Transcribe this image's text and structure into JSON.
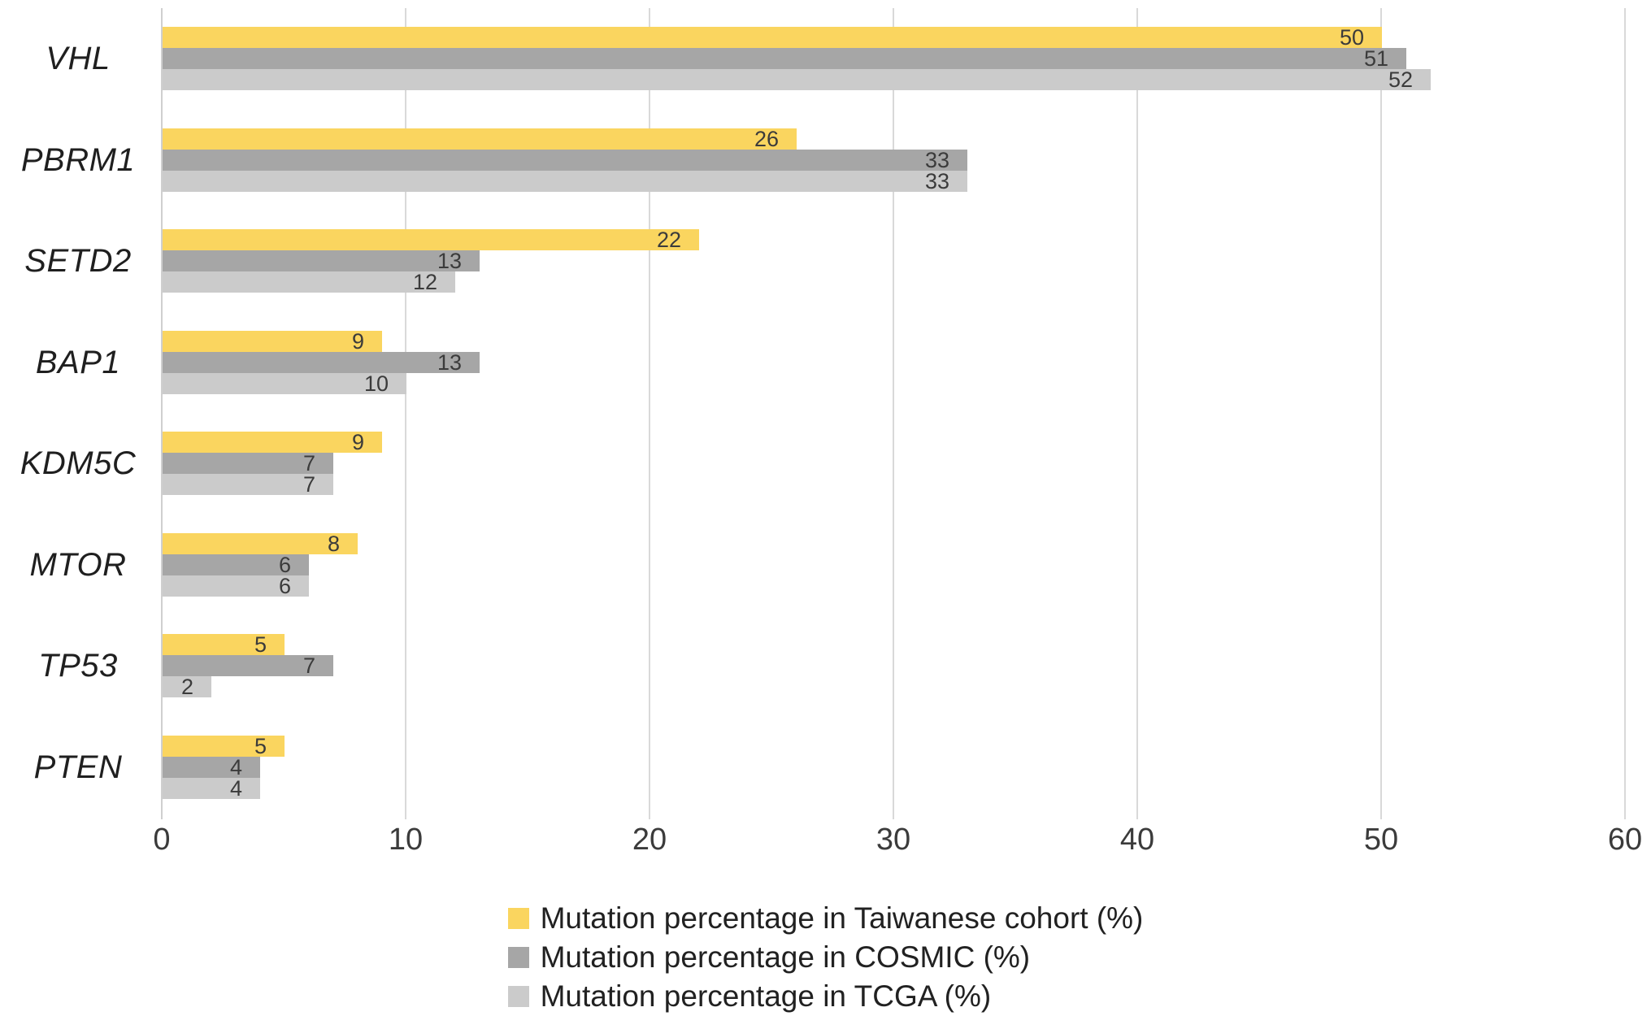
{
  "chart_data": {
    "type": "bar",
    "orientation": "horizontal",
    "title": "",
    "xlabel": "",
    "ylabel": "",
    "categories": [
      "VHL",
      "PBRM1",
      "SETD2",
      "BAP1",
      "KDM5C",
      "MTOR",
      "TP53",
      "PTEN"
    ],
    "series": [
      {
        "key": "taiwanese",
        "name": "Mutation percentage in Taiwanese cohort (%)",
        "color": "#FAD55F",
        "values": [
          50,
          26,
          22,
          9,
          9,
          8,
          5,
          5
        ]
      },
      {
        "key": "cosmic",
        "name": "Mutation percentage in COSMIC (%)",
        "color": "#A6A6A6",
        "values": [
          51,
          33,
          13,
          13,
          7,
          6,
          7,
          4
        ]
      },
      {
        "key": "tcga",
        "name": "Mutation percentage in TCGA (%)",
        "color": "#CBCBCB",
        "values": [
          52,
          33,
          12,
          10,
          7,
          6,
          2,
          4
        ]
      }
    ],
    "x_axis": {
      "min": 0,
      "max": 60,
      "ticks": [
        0,
        10,
        20,
        30,
        40,
        50,
        60
      ]
    },
    "data_labels": "inside-end",
    "grid": "vertical",
    "legend_position": "bottom-center",
    "category_label_style": "italic"
  },
  "colors": {
    "gridline": "#d9d9d9",
    "axis_text": "#3b3b3b",
    "category_text": "#1f1f1f",
    "legend_text": "#212121",
    "background": "#ffffff"
  }
}
